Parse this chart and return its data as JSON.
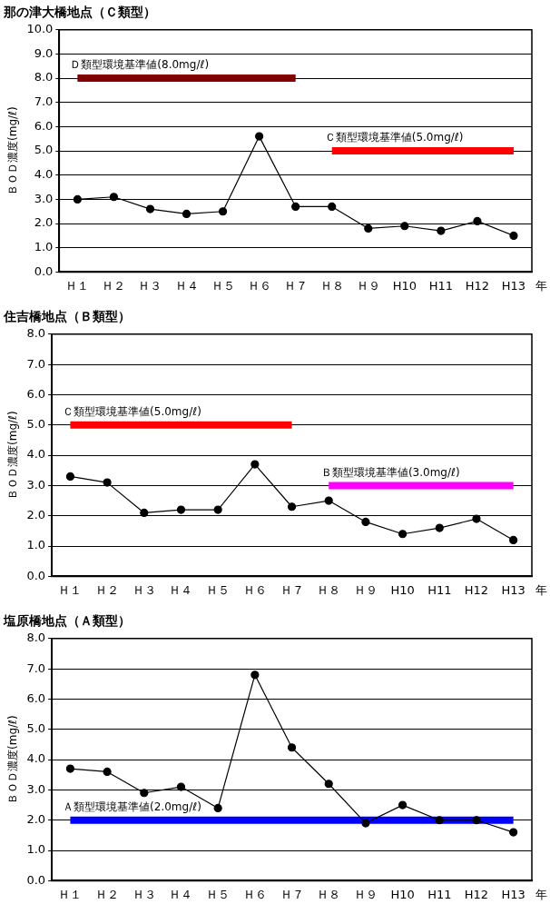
{
  "chart_data": [
    {
      "type": "line",
      "title": "那の津大橋地点（Ｃ類型）",
      "ylabel": "ＢＯＤ濃度(mg/ℓ)",
      "xlabel": "年",
      "categories": [
        "Ｈ１",
        "Ｈ２",
        "Ｈ３",
        "Ｈ４",
        "Ｈ５",
        "Ｈ６",
        "Ｈ７",
        "Ｈ８",
        "Ｈ９",
        "H10",
        "H11",
        "H12",
        "H13"
      ],
      "ylim": [
        0,
        10
      ],
      "yticks": [
        {
          "value": 0,
          "label": "0.0"
        },
        {
          "value": 1,
          "label": "1.0"
        },
        {
          "value": 2,
          "label": "2.0"
        },
        {
          "value": 3,
          "label": "3.0"
        },
        {
          "value": 4,
          "label": "4.0"
        },
        {
          "value": 5,
          "label": "5.0"
        },
        {
          "value": 6,
          "label": "6.0"
        },
        {
          "value": 7,
          "label": "7.0"
        },
        {
          "value": 8,
          "label": "8.0"
        },
        {
          "value": 9,
          "label": "9.0"
        },
        {
          "value": 10,
          "label": "10.0"
        }
      ],
      "grid": "y",
      "legend": false,
      "marker": "circle",
      "series": [
        {
          "color": "#000000",
          "values": [
            3.0,
            3.1,
            2.6,
            2.4,
            2.5,
            5.6,
            2.7,
            2.7,
            1.8,
            1.9,
            1.7,
            2.1,
            1.5
          ]
        },
        {
          "type": "step",
          "marker": "none",
          "name": "Ｄ類型環境基準値(8.0mg/ℓ)",
          "color": "#800000",
          "values": [
            8,
            8,
            8,
            8,
            8,
            8,
            8,
            null,
            null,
            null,
            null,
            null,
            null
          ]
        },
        {
          "type": "step",
          "marker": "none",
          "name": "Ｃ類型環境基準値(5.0mg/ℓ)",
          "color": "#ff0000",
          "values": [
            null,
            null,
            null,
            null,
            null,
            null,
            null,
            5,
            5,
            5,
            5,
            5,
            5
          ]
        }
      ]
    },
    {
      "type": "line",
      "title": "住吉橋地点（Ｂ類型）",
      "ylabel": "ＢＯＤ濃度(mg/ℓ)",
      "xlabel": "年",
      "categories": [
        "Ｈ１",
        "Ｈ２",
        "Ｈ３",
        "Ｈ４",
        "Ｈ５",
        "Ｈ６",
        "Ｈ７",
        "Ｈ８",
        "Ｈ９",
        "H10",
        "H11",
        "H12",
        "H13"
      ],
      "ylim": [
        0,
        8
      ],
      "yticks": [
        {
          "value": 0,
          "label": "0.0"
        },
        {
          "value": 1,
          "label": "1.0"
        },
        {
          "value": 2,
          "label": "2.0"
        },
        {
          "value": 3,
          "label": "3.0"
        },
        {
          "value": 4,
          "label": "4.0"
        },
        {
          "value": 5,
          "label": "5.0"
        },
        {
          "value": 6,
          "label": "6.0"
        },
        {
          "value": 7,
          "label": "7.0"
        },
        {
          "value": 8,
          "label": "8.0"
        }
      ],
      "grid": "y",
      "legend": false,
      "marker": "circle",
      "series": [
        {
          "color": "#000000",
          "values": [
            3.3,
            3.1,
            2.1,
            2.2,
            2.2,
            3.7,
            2.3,
            2.5,
            1.8,
            1.4,
            1.6,
            1.9,
            1.2
          ]
        },
        {
          "type": "step",
          "marker": "none",
          "name": "Ｃ類型環境基準値(5.0mg/ℓ)",
          "color": "#ff0000",
          "values": [
            5,
            5,
            5,
            5,
            5,
            5,
            5,
            null,
            null,
            null,
            null,
            null,
            null
          ]
        },
        {
          "type": "step",
          "marker": "none",
          "name": "Ｂ類型環境基準値(3.0mg/ℓ)",
          "color": "#ff00ff",
          "values": [
            null,
            null,
            null,
            null,
            null,
            null,
            null,
            3,
            3,
            3,
            3,
            3,
            3
          ]
        }
      ]
    },
    {
      "type": "line",
      "title": "塩原橋地点（Ａ類型）",
      "ylabel": "ＢＯＤ濃度(mg/ℓ)",
      "xlabel": "年",
      "categories": [
        "Ｈ１",
        "Ｈ２",
        "Ｈ３",
        "Ｈ４",
        "Ｈ５",
        "Ｈ６",
        "Ｈ７",
        "Ｈ８",
        "Ｈ９",
        "H10",
        "H11",
        "H12",
        "H13"
      ],
      "ylim": [
        0,
        8
      ],
      "yticks": [
        {
          "value": 0,
          "label": "0.0"
        },
        {
          "value": 1,
          "label": "1.0"
        },
        {
          "value": 2,
          "label": "2.0"
        },
        {
          "value": 3,
          "label": "3.0"
        },
        {
          "value": 4,
          "label": "4.0"
        },
        {
          "value": 5,
          "label": "5.0"
        },
        {
          "value": 6,
          "label": "6.0"
        },
        {
          "value": 7,
          "label": "7.0"
        },
        {
          "value": 8,
          "label": "8.0"
        }
      ],
      "grid": "y",
      "legend": false,
      "marker": "circle",
      "series": [
        {
          "color": "#000000",
          "values": [
            3.7,
            3.6,
            2.9,
            3.1,
            2.4,
            6.8,
            4.4,
            3.2,
            1.9,
            2.5,
            2.0,
            2.0,
            1.6
          ]
        },
        {
          "type": "step",
          "marker": "none",
          "name": "Ａ類型環境基準値(2.0mg/ℓ)",
          "color": "#0000ff",
          "values": [
            2,
            2,
            2,
            2,
            2,
            2,
            2,
            2,
            2,
            2,
            2,
            2,
            2
          ]
        }
      ]
    }
  ]
}
